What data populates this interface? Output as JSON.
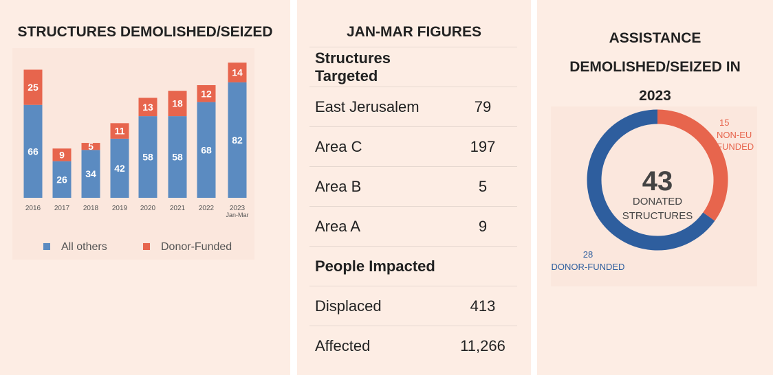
{
  "left": {
    "title": "STRUCTURES DEMOLISHED/SEIZED"
  },
  "chart_data": [
    {
      "type": "bar",
      "stacked": true,
      "categories": [
        "2016",
        "2017",
        "2018",
        "2019",
        "2020",
        "2021",
        "2022",
        "2023 Jan-Mar"
      ],
      "series": [
        {
          "name": "All others",
          "color": "#5b8bc1",
          "values": [
            66,
            26,
            34,
            42,
            58,
            58,
            68,
            82
          ]
        },
        {
          "name": "Donor-Funded",
          "color": "#e7654d",
          "values": [
            25,
            9,
            5,
            11,
            13,
            18,
            12,
            14
          ]
        }
      ],
      "legend": "bottom",
      "grid": false
    },
    {
      "type": "pie",
      "donut": true,
      "center_value": "43",
      "center_label": [
        "DONATED",
        "STRUCTURES"
      ],
      "slices": [
        {
          "label": "NON-EU FUNDED",
          "value": 15,
          "color": "#e7654d"
        },
        {
          "label": "DONOR-FUNDED",
          "value": 28,
          "color": "#2e5e9e"
        }
      ]
    }
  ],
  "middle": {
    "title": "JAN-MAR FIGURES",
    "rows": [
      {
        "label": "Structures Targeted",
        "value": "",
        "head": true
      },
      {
        "label": "East Jerusalem",
        "value": "79"
      },
      {
        "label": "Area C",
        "value": "197"
      },
      {
        "label": "Area B",
        "value": "5"
      },
      {
        "label": "Area A",
        "value": "9"
      },
      {
        "label": "People Impacted",
        "value": "",
        "head": true
      },
      {
        "label": "Displaced",
        "value": "413"
      },
      {
        "label": "Affected",
        "value": "11,266"
      }
    ]
  },
  "right": {
    "title_lines": [
      "ASSISTANCE",
      "DEMOLISHED/SEIZED IN",
      "2023"
    ]
  }
}
